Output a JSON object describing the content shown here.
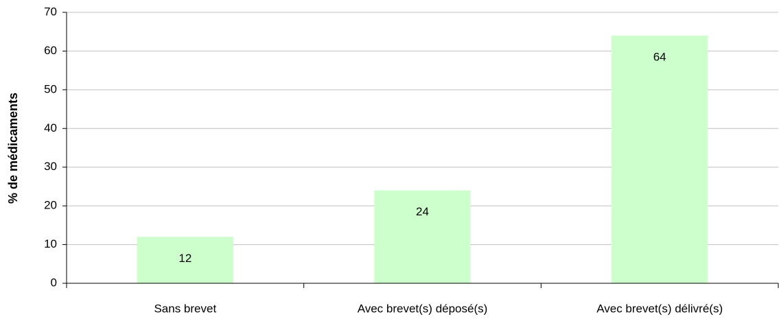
{
  "chart_data": {
    "type": "bar",
    "y_label": "% de médicaments",
    "categories": [
      "Sans brevet",
      "Avec brevet(s) déposé(s)",
      "Avec brevet(s) délivré(s)"
    ],
    "values": [
      12,
      24,
      64
    ],
    "color": "#ccffcc",
    "ylim": [
      0,
      70
    ],
    "yticks": [
      0,
      10,
      20,
      30,
      40,
      50,
      60,
      70
    ],
    "grid": true
  }
}
